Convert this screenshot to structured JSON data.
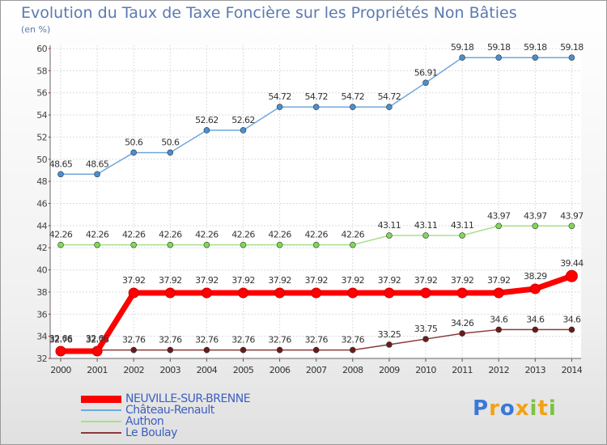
{
  "chart_data": {
    "type": "line",
    "title": "Evolution du Taux de Taxe Foncière sur les Propriétés Non Bâties",
    "unit_label": "(en %)",
    "x": [
      "2000",
      "2001",
      "2002",
      "2003",
      "2004",
      "2005",
      "2006",
      "2007",
      "2008",
      "2009",
      "2010",
      "2011",
      "2012",
      "2013",
      "2014"
    ],
    "ylim": [
      32,
      60
    ],
    "yticks": [
      "32",
      "34",
      "36",
      "38",
      "40",
      "42",
      "44",
      "46",
      "48",
      "50",
      "52",
      "54",
      "56",
      "58",
      "60"
    ],
    "series": [
      {
        "name": "Château-Renault",
        "color": "#4a8fd0",
        "line_color": "#6fa8dc",
        "values": [
          48.65,
          48.65,
          50.6,
          50.6,
          52.62,
          52.62,
          54.72,
          54.72,
          54.72,
          54.72,
          56.91,
          59.18,
          59.18,
          59.18,
          59.18
        ],
        "labels": [
          "48.65",
          "48.65",
          "50.6",
          "50.6",
          "52.62",
          "52.62",
          "54.72",
          "54.72",
          "54.72",
          "54.72",
          "56.91",
          "59.18",
          "59.18",
          "59.18",
          "59.18"
        ]
      },
      {
        "name": "Authon",
        "color": "#7ed957",
        "line_color": "#a8e08a",
        "values": [
          42.26,
          42.26,
          42.26,
          42.26,
          42.26,
          42.26,
          42.26,
          42.26,
          42.26,
          43.11,
          43.11,
          43.11,
          43.97,
          43.97,
          43.97
        ],
        "labels": [
          "42.26",
          "42.26",
          "42.26",
          "42.26",
          "42.26",
          "42.26",
          "42.26",
          "42.26",
          "42.26",
          "43.11",
          "43.11",
          "43.11",
          "43.97",
          "43.97",
          "43.97"
        ]
      },
      {
        "name": "Le Boulay",
        "color": "#6b1a1a",
        "line_color": "#8c3a3a",
        "values": [
          32.76,
          32.76,
          32.76,
          32.76,
          32.76,
          32.76,
          32.76,
          32.76,
          32.76,
          33.25,
          33.75,
          34.26,
          34.6,
          34.6,
          34.6
        ],
        "labels": [
          "32.76",
          "32.76",
          "32.76",
          "32.76",
          "32.76",
          "32.76",
          "32.76",
          "32.76",
          "32.76",
          "33.25",
          "33.75",
          "34.26",
          "34.6",
          "34.6",
          "34.6"
        ]
      },
      {
        "name": "NEUVILLE-SUR-BRENNE",
        "color": "#ff0000",
        "line_color": "#ff0000",
        "values": [
          32.66,
          32.66,
          37.92,
          37.92,
          37.92,
          37.92,
          37.92,
          37.92,
          37.92,
          37.92,
          37.92,
          37.92,
          37.92,
          38.29,
          39.44
        ],
        "labels": [
          "32.66",
          "32.66",
          "37.92",
          "37.92",
          "37.92",
          "37.92",
          "37.92",
          "37.92",
          "37.92",
          "37.92",
          "37.92",
          "37.92",
          "37.92",
          "38.29",
          "39.44"
        ]
      }
    ],
    "legend": [
      "NEUVILLE-SUR-BRENNE",
      "Château-Renault",
      "Authon",
      "Le Boulay"
    ]
  },
  "logo": {
    "text": "Proxiti"
  }
}
